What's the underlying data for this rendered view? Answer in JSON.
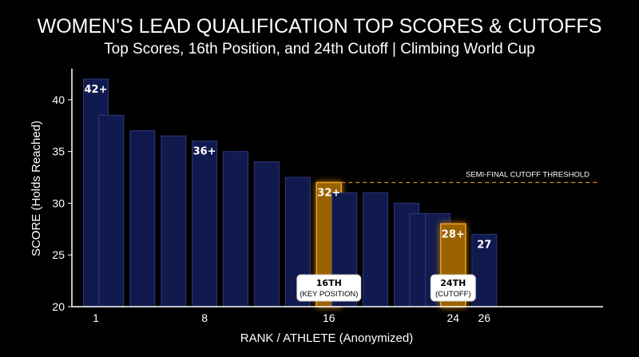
{
  "chart_data": {
    "type": "bar",
    "title": "WOMEN'S LEAD QUALIFICATION TOP SCORES & CUTOFFS",
    "subtitle": "Top Scores, 16th Position, and 24th Cutoff | Climbing World Cup",
    "xlabel": "RANK / ATHLETE (Anonymized)",
    "ylabel": "SCORE (Holds Reached)",
    "ylim": [
      20,
      43
    ],
    "yticks": [
      20,
      25,
      30,
      35,
      40
    ],
    "xtick_labels": [
      {
        "rank": 1,
        "label": "1"
      },
      {
        "rank": 8,
        "label": "8"
      },
      {
        "rank": 16,
        "label": "16"
      },
      {
        "rank": 24,
        "label": "24"
      },
      {
        "rank": 26,
        "label": "26"
      }
    ],
    "bars": [
      {
        "rank": 1,
        "value": 42,
        "label": "42+"
      },
      {
        "rank": 2,
        "value": 38.5
      },
      {
        "rank": 4,
        "value": 37
      },
      {
        "rank": 6,
        "value": 36.5
      },
      {
        "rank": 8,
        "value": 36,
        "label": "36+"
      },
      {
        "rank": 10,
        "value": 35
      },
      {
        "rank": 12,
        "value": 34
      },
      {
        "rank": 14,
        "value": 32.5
      },
      {
        "rank": 16,
        "value": 32,
        "label": "32+",
        "highlight": true
      },
      {
        "rank": 17,
        "value": 31
      },
      {
        "rank": 19,
        "value": 31
      },
      {
        "rank": 21,
        "value": 30
      },
      {
        "rank": 22,
        "value": 29
      },
      {
        "rank": 23,
        "value": 29
      },
      {
        "rank": 24,
        "value": 28,
        "label": "28+",
        "highlight": true
      },
      {
        "rank": 26,
        "value": 27,
        "label": "27"
      }
    ],
    "threshold": {
      "value": 32,
      "label": "SEMI-FINAL CUTOFF THRESHOLD"
    },
    "callouts": [
      {
        "rank": 16,
        "title": "16TH",
        "subtitle": "(KEY POSITION)"
      },
      {
        "rank": 24,
        "title": "24TH",
        "subtitle": "(CUTOFF)"
      }
    ],
    "colors": {
      "bar": "#111a4e",
      "bar_stroke": "#2c3a7a",
      "highlight": "#9a6406",
      "highlight_stroke": "#f0a020",
      "threshold": "#d98a2b",
      "background": "#000000"
    }
  }
}
